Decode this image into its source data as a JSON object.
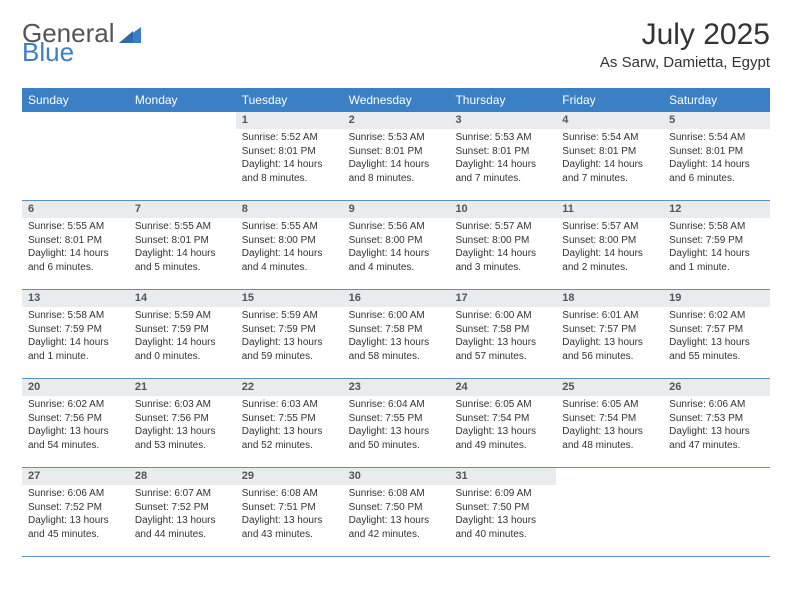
{
  "logo": {
    "text1": "General",
    "text2": "Blue"
  },
  "title": "July 2025",
  "location": "As Sarw, Damietta, Egypt",
  "colors": {
    "headerBg": "#3b7fc4",
    "headerText": "#ffffff",
    "dayNumBg": "#e9ecef",
    "borderBlue": "#5a8fc9",
    "bodyText": "#333333"
  },
  "dayNames": [
    "Sunday",
    "Monday",
    "Tuesday",
    "Wednesday",
    "Thursday",
    "Friday",
    "Saturday"
  ],
  "weeks": [
    [
      {
        "n": "",
        "lines": []
      },
      {
        "n": "",
        "lines": []
      },
      {
        "n": "1",
        "lines": [
          "Sunrise: 5:52 AM",
          "Sunset: 8:01 PM",
          "Daylight: 14 hours and 8 minutes."
        ]
      },
      {
        "n": "2",
        "lines": [
          "Sunrise: 5:53 AM",
          "Sunset: 8:01 PM",
          "Daylight: 14 hours and 8 minutes."
        ]
      },
      {
        "n": "3",
        "lines": [
          "Sunrise: 5:53 AM",
          "Sunset: 8:01 PM",
          "Daylight: 14 hours and 7 minutes."
        ]
      },
      {
        "n": "4",
        "lines": [
          "Sunrise: 5:54 AM",
          "Sunset: 8:01 PM",
          "Daylight: 14 hours and 7 minutes."
        ]
      },
      {
        "n": "5",
        "lines": [
          "Sunrise: 5:54 AM",
          "Sunset: 8:01 PM",
          "Daylight: 14 hours and 6 minutes."
        ]
      }
    ],
    [
      {
        "n": "6",
        "lines": [
          "Sunrise: 5:55 AM",
          "Sunset: 8:01 PM",
          "Daylight: 14 hours and 6 minutes."
        ]
      },
      {
        "n": "7",
        "lines": [
          "Sunrise: 5:55 AM",
          "Sunset: 8:01 PM",
          "Daylight: 14 hours and 5 minutes."
        ]
      },
      {
        "n": "8",
        "lines": [
          "Sunrise: 5:55 AM",
          "Sunset: 8:00 PM",
          "Daylight: 14 hours and 4 minutes."
        ]
      },
      {
        "n": "9",
        "lines": [
          "Sunrise: 5:56 AM",
          "Sunset: 8:00 PM",
          "Daylight: 14 hours and 4 minutes."
        ]
      },
      {
        "n": "10",
        "lines": [
          "Sunrise: 5:57 AM",
          "Sunset: 8:00 PM",
          "Daylight: 14 hours and 3 minutes."
        ]
      },
      {
        "n": "11",
        "lines": [
          "Sunrise: 5:57 AM",
          "Sunset: 8:00 PM",
          "Daylight: 14 hours and 2 minutes."
        ]
      },
      {
        "n": "12",
        "lines": [
          "Sunrise: 5:58 AM",
          "Sunset: 7:59 PM",
          "Daylight: 14 hours and 1 minute."
        ]
      }
    ],
    [
      {
        "n": "13",
        "lines": [
          "Sunrise: 5:58 AM",
          "Sunset: 7:59 PM",
          "Daylight: 14 hours and 1 minute."
        ]
      },
      {
        "n": "14",
        "lines": [
          "Sunrise: 5:59 AM",
          "Sunset: 7:59 PM",
          "Daylight: 14 hours and 0 minutes."
        ]
      },
      {
        "n": "15",
        "lines": [
          "Sunrise: 5:59 AM",
          "Sunset: 7:59 PM",
          "Daylight: 13 hours and 59 minutes."
        ]
      },
      {
        "n": "16",
        "lines": [
          "Sunrise: 6:00 AM",
          "Sunset: 7:58 PM",
          "Daylight: 13 hours and 58 minutes."
        ]
      },
      {
        "n": "17",
        "lines": [
          "Sunrise: 6:00 AM",
          "Sunset: 7:58 PM",
          "Daylight: 13 hours and 57 minutes."
        ]
      },
      {
        "n": "18",
        "lines": [
          "Sunrise: 6:01 AM",
          "Sunset: 7:57 PM",
          "Daylight: 13 hours and 56 minutes."
        ]
      },
      {
        "n": "19",
        "lines": [
          "Sunrise: 6:02 AM",
          "Sunset: 7:57 PM",
          "Daylight: 13 hours and 55 minutes."
        ]
      }
    ],
    [
      {
        "n": "20",
        "lines": [
          "Sunrise: 6:02 AM",
          "Sunset: 7:56 PM",
          "Daylight: 13 hours and 54 minutes."
        ]
      },
      {
        "n": "21",
        "lines": [
          "Sunrise: 6:03 AM",
          "Sunset: 7:56 PM",
          "Daylight: 13 hours and 53 minutes."
        ]
      },
      {
        "n": "22",
        "lines": [
          "Sunrise: 6:03 AM",
          "Sunset: 7:55 PM",
          "Daylight: 13 hours and 52 minutes."
        ]
      },
      {
        "n": "23",
        "lines": [
          "Sunrise: 6:04 AM",
          "Sunset: 7:55 PM",
          "Daylight: 13 hours and 50 minutes."
        ]
      },
      {
        "n": "24",
        "lines": [
          "Sunrise: 6:05 AM",
          "Sunset: 7:54 PM",
          "Daylight: 13 hours and 49 minutes."
        ]
      },
      {
        "n": "25",
        "lines": [
          "Sunrise: 6:05 AM",
          "Sunset: 7:54 PM",
          "Daylight: 13 hours and 48 minutes."
        ]
      },
      {
        "n": "26",
        "lines": [
          "Sunrise: 6:06 AM",
          "Sunset: 7:53 PM",
          "Daylight: 13 hours and 47 minutes."
        ]
      }
    ],
    [
      {
        "n": "27",
        "lines": [
          "Sunrise: 6:06 AM",
          "Sunset: 7:52 PM",
          "Daylight: 13 hours and 45 minutes."
        ]
      },
      {
        "n": "28",
        "lines": [
          "Sunrise: 6:07 AM",
          "Sunset: 7:52 PM",
          "Daylight: 13 hours and 44 minutes."
        ]
      },
      {
        "n": "29",
        "lines": [
          "Sunrise: 6:08 AM",
          "Sunset: 7:51 PM",
          "Daylight: 13 hours and 43 minutes."
        ]
      },
      {
        "n": "30",
        "lines": [
          "Sunrise: 6:08 AM",
          "Sunset: 7:50 PM",
          "Daylight: 13 hours and 42 minutes."
        ]
      },
      {
        "n": "31",
        "lines": [
          "Sunrise: 6:09 AM",
          "Sunset: 7:50 PM",
          "Daylight: 13 hours and 40 minutes."
        ]
      },
      {
        "n": "",
        "lines": []
      },
      {
        "n": "",
        "lines": []
      }
    ]
  ]
}
